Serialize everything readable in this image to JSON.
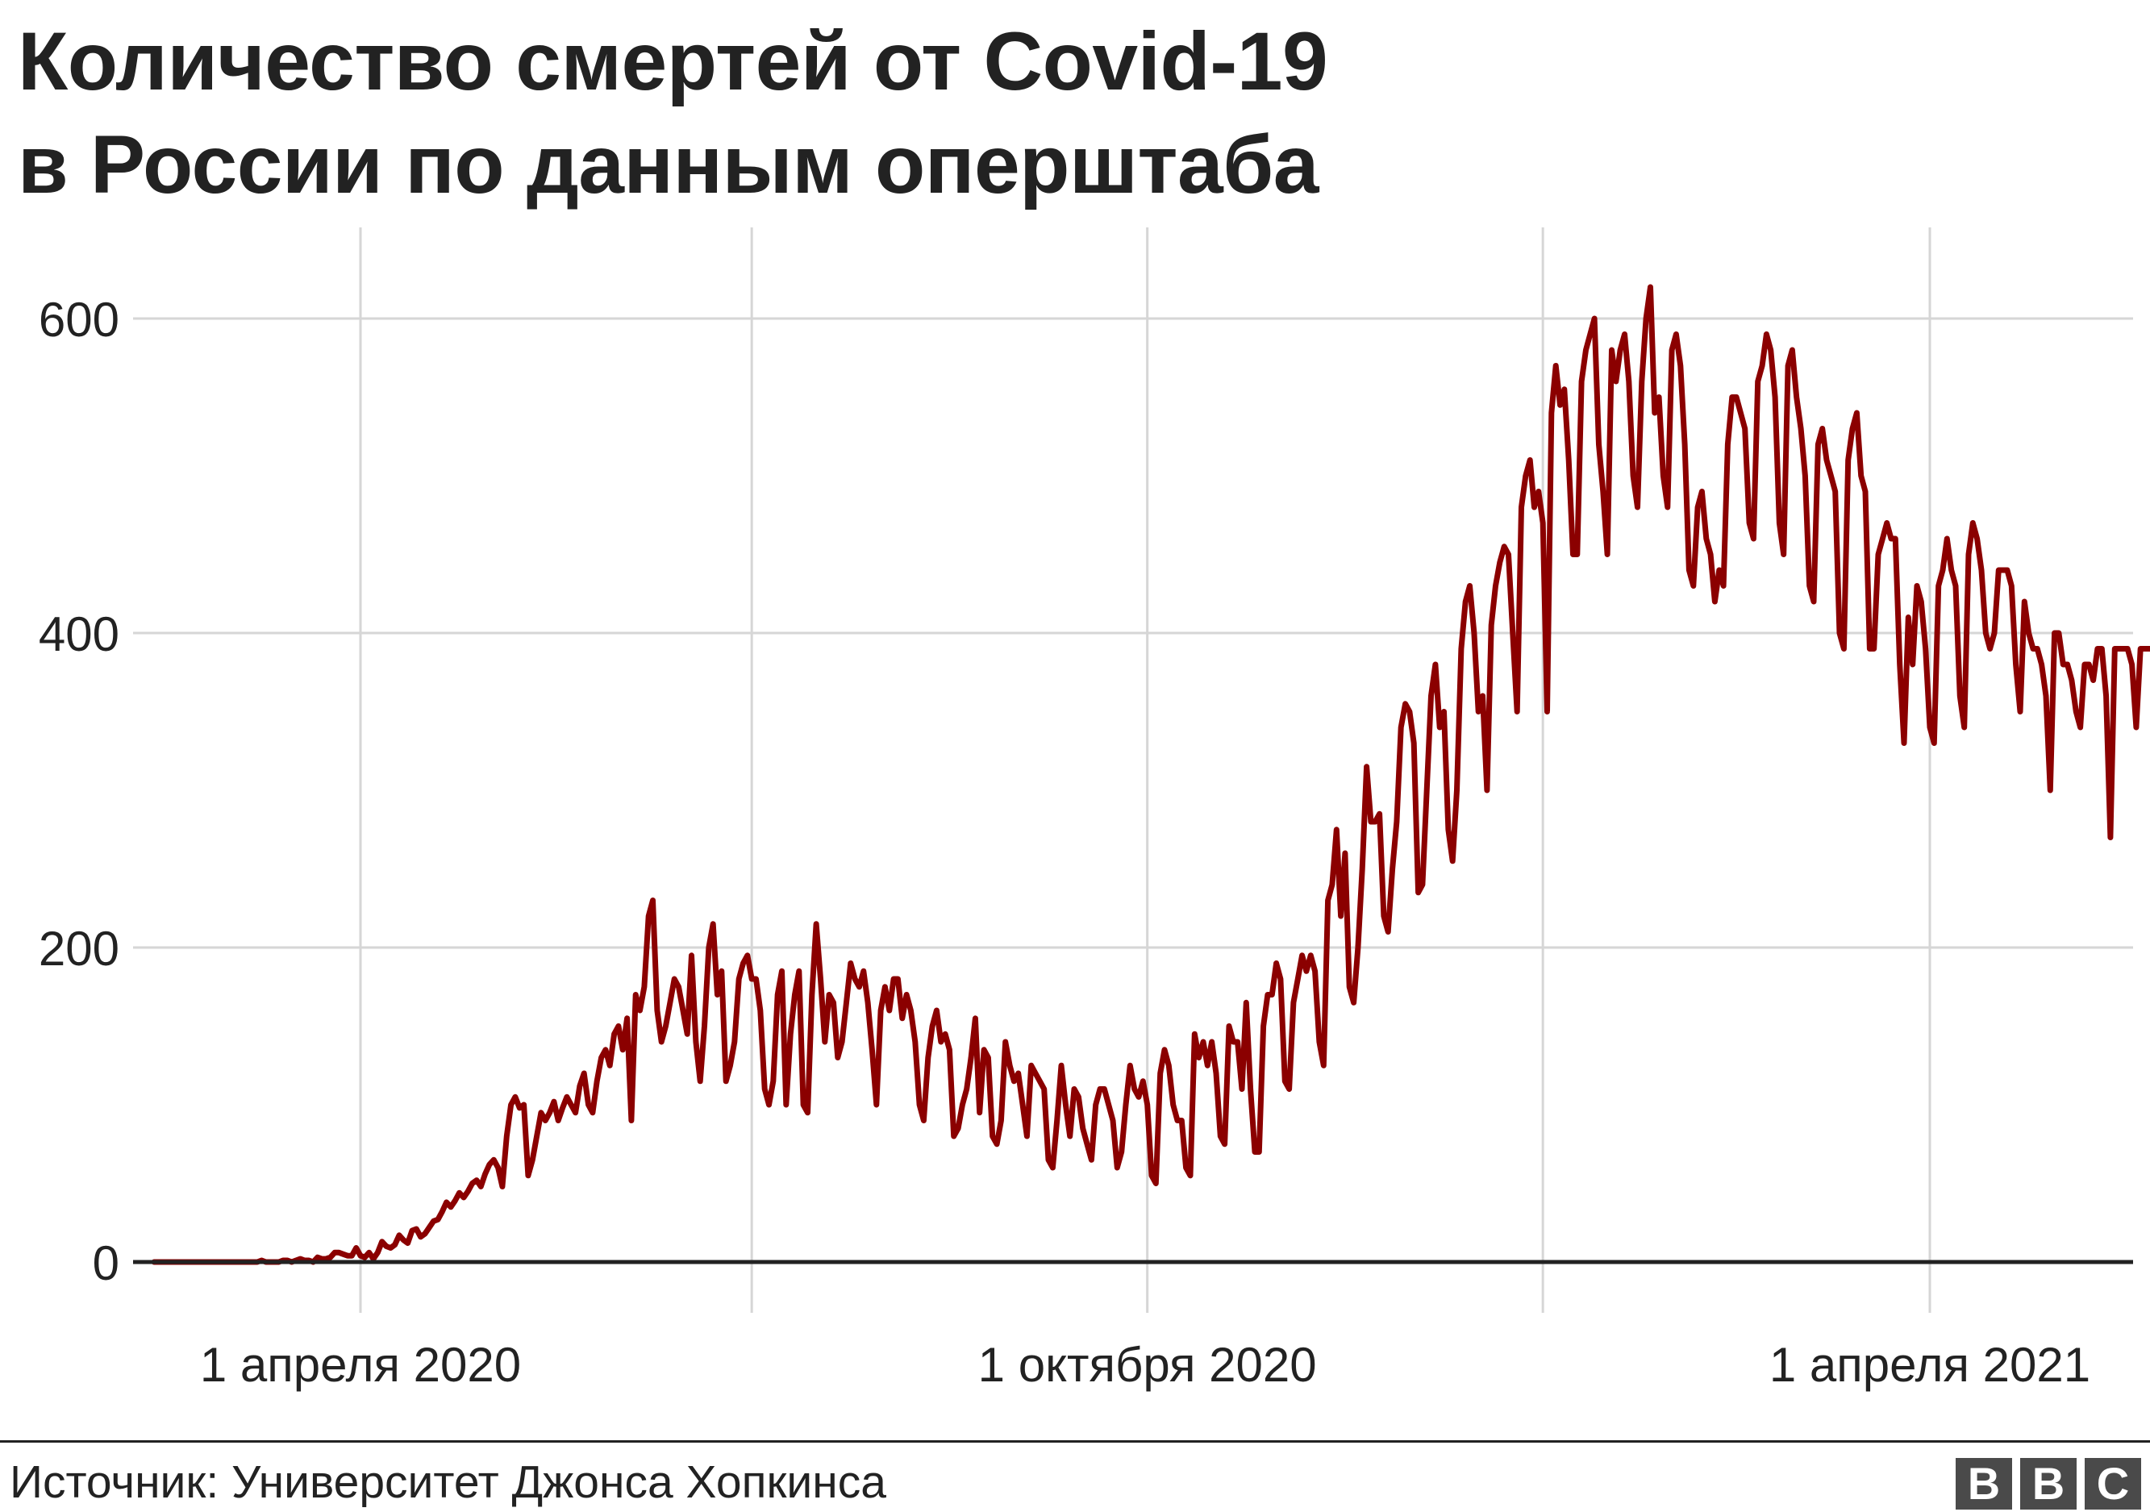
{
  "title": {
    "line1": "Количество смертей от Covid-19",
    "line2": "в России по данным оперштаба"
  },
  "source": "Источник: Университет Джонса Хопкинса",
  "logo": [
    "B",
    "B",
    "C"
  ],
  "colors": {
    "line": "#8b0000",
    "grid": "#d6d6d6",
    "baseline": "#222222",
    "text": "#222222",
    "logo_bg": "#4a4a4a"
  },
  "chart_data": {
    "type": "line",
    "title": "Количество смертей от Covid-19 в России по данным оперштаба",
    "xlabel": "",
    "ylabel": "",
    "ylim": [
      0,
      650
    ],
    "yticks": [
      0,
      200,
      400,
      600
    ],
    "xlim": [
      "2020-01-23",
      "2021-05-16"
    ],
    "xgrid": [
      "2020-04-01",
      "2020-07-01",
      "2020-10-01",
      "2021-01-01",
      "2021-04-01"
    ],
    "xticks": [
      {
        "date": "2020-04-01",
        "label": "1 апреля 2020"
      },
      {
        "date": "2020-10-01",
        "label": "1 октября 2020"
      },
      {
        "date": "2021-04-01",
        "label": "1 апреля 2021"
      }
    ],
    "grid": true,
    "legend": "none",
    "series": [
      {
        "x_start": "2020-02-13",
        "values": [
          0,
          0,
          0,
          0,
          0,
          0,
          0,
          0,
          0,
          0,
          0,
          0,
          0,
          0,
          0,
          0,
          0,
          0,
          0,
          0,
          0,
          0,
          0,
          0,
          0,
          1,
          0,
          0,
          0,
          0,
          1,
          1,
          0,
          1,
          2,
          1,
          1,
          0,
          3,
          2,
          2,
          3,
          6,
          6,
          5,
          4,
          4,
          9,
          4,
          3,
          6,
          2,
          6,
          13,
          10,
          9,
          11,
          17,
          14,
          12,
          20,
          21,
          16,
          18,
          22,
          26,
          27,
          32,
          38,
          35,
          39,
          44,
          41,
          45,
          50,
          52,
          48,
          56,
          62,
          65,
          60,
          48,
          80,
          100,
          105,
          98,
          100,
          55,
          65,
          80,
          95,
          90,
          95,
          102,
          90,
          98,
          105,
          100,
          95,
          112,
          120,
          100,
          95,
          115,
          130,
          135,
          125,
          145,
          150,
          135,
          155,
          90,
          170,
          160,
          175,
          220,
          230,
          160,
          140,
          150,
          165,
          180,
          175,
          160,
          145,
          195,
          140,
          115,
          150,
          200,
          215,
          170,
          185,
          115,
          125,
          140,
          180,
          190,
          195,
          180,
          180,
          160,
          110,
          100,
          115,
          170,
          185,
          100,
          145,
          170,
          185,
          100,
          95,
          170,
          215,
          180,
          140,
          170,
          165,
          130,
          140,
          165,
          190,
          180,
          175,
          185,
          165,
          135,
          100,
          160,
          175,
          160,
          180,
          180,
          155,
          170,
          160,
          140,
          100,
          90,
          130,
          150,
          160,
          140,
          145,
          135,
          80,
          85,
          100,
          110,
          130,
          155,
          95,
          135,
          130,
          80,
          75,
          90,
          140,
          125,
          115,
          120,
          100,
          80,
          125,
          120,
          115,
          110,
          65,
          60,
          90,
          125,
          100,
          80,
          110,
          105,
          85,
          75,
          65,
          100,
          110,
          110,
          100,
          90,
          60,
          70,
          100,
          125,
          110,
          105,
          115,
          100,
          55,
          50,
          120,
          135,
          125,
          100,
          90,
          90,
          60,
          55,
          145,
          130,
          140,
          125,
          140,
          120,
          80,
          75,
          150,
          140,
          140,
          110,
          165,
          110,
          70,
          70,
          150,
          170,
          170,
          190,
          180,
          115,
          110,
          165,
          180,
          195,
          185,
          195,
          185,
          140,
          125,
          230,
          240,
          275,
          220,
          260,
          175,
          165,
          200,
          250,
          315,
          280,
          280,
          285,
          220,
          210,
          250,
          280,
          340,
          355,
          350,
          330,
          235,
          240,
          300,
          360,
          380,
          340,
          350,
          275,
          255,
          300,
          390,
          420,
          430,
          400,
          350,
          360,
          300,
          405,
          430,
          445,
          455,
          450,
          400,
          350,
          480,
          500,
          510,
          480,
          490,
          470,
          350,
          540,
          570,
          545,
          555,
          510,
          450,
          450,
          560,
          580,
          590,
          600,
          520,
          490,
          450,
          580,
          560,
          580,
          590,
          560,
          500,
          480,
          560,
          600,
          620,
          540,
          550,
          500,
          480,
          580,
          590,
          570,
          520,
          440,
          430,
          480,
          490,
          460,
          450,
          420,
          440,
          430,
          520,
          550,
          550,
          540,
          530,
          470,
          460,
          560,
          570,
          590,
          580,
          550,
          470,
          450,
          570,
          580,
          550,
          530,
          500,
          430,
          420,
          520,
          530,
          510,
          500,
          490,
          400,
          390,
          510,
          530,
          540,
          500,
          490,
          390,
          390,
          450,
          460,
          470,
          460,
          460,
          380,
          330,
          410,
          380,
          430,
          420,
          390,
          340,
          330,
          430,
          440,
          460,
          440,
          430,
          360,
          340,
          450,
          470,
          460,
          440,
          400,
          390,
          400,
          440,
          440,
          440,
          430,
          380,
          350,
          420,
          400,
          390,
          390,
          380,
          360,
          300,
          400,
          400,
          380,
          380,
          370,
          350,
          340,
          380,
          380,
          370,
          390,
          390,
          360,
          270,
          390,
          390,
          390,
          390,
          380,
          340,
          390,
          390,
          390,
          390,
          380,
          330,
          380
        ]
      }
    ]
  }
}
